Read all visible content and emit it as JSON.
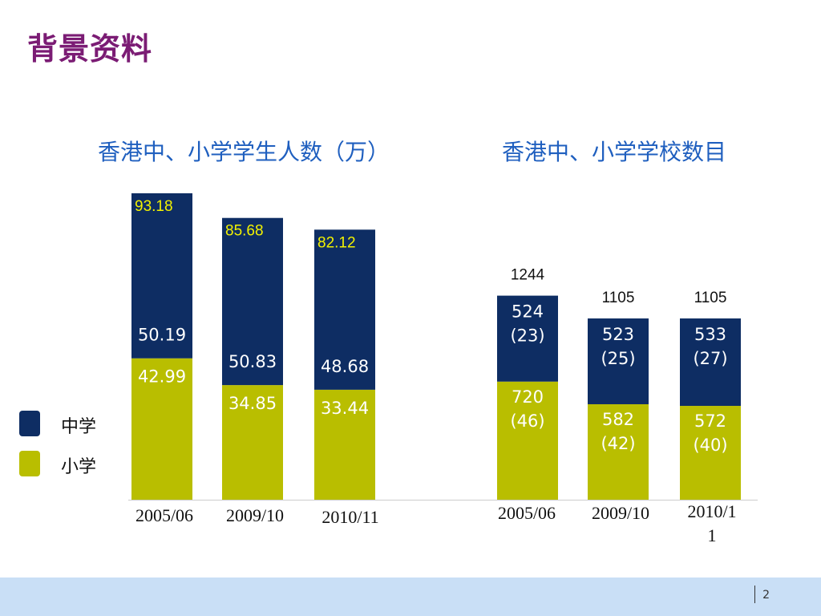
{
  "slide": {
    "title": "背景资料",
    "page_number": "2"
  },
  "legend": [
    {
      "label": "中学",
      "color": "#0e2d63"
    },
    {
      "label": "小学",
      "color": "#b9be00"
    }
  ],
  "colors": {
    "secondary": "#0e2d63",
    "primary": "#b9be00",
    "chart_title": "#1f5fbf",
    "slide_title": "#7b1c74",
    "footer": "#c9dff6"
  },
  "chart_data": [
    {
      "type": "bar",
      "stacked": true,
      "title": "香港中、小学学生人数（万）",
      "categories": [
        "2005/06",
        "2009/10",
        "2010/11"
      ],
      "series": [
        {
          "name": "小学",
          "values": [
            42.99,
            34.85,
            33.44
          ],
          "labels": [
            "42.99",
            "34.85",
            "33.44"
          ]
        },
        {
          "name": "中学",
          "values": [
            50.19,
            50.83,
            48.68
          ],
          "labels": [
            "50.19",
            "50.83",
            "48.68"
          ]
        }
      ],
      "totals": [
        "93.18",
        "85.68",
        "82.12"
      ]
    },
    {
      "type": "bar",
      "stacked": true,
      "title": "香港中、小学学校数目",
      "categories": [
        "2005/06",
        "2009/10",
        "2010/11"
      ],
      "series": [
        {
          "name": "小学",
          "values": [
            720,
            582,
            572
          ],
          "labels": [
            [
              "720",
              "(46)"
            ],
            [
              "582",
              "(42)"
            ],
            [
              "572",
              "(40)"
            ]
          ]
        },
        {
          "name": "中学",
          "values": [
            524,
            523,
            533
          ],
          "labels": [
            [
              "524",
              "(23)"
            ],
            [
              "523",
              "(25)"
            ],
            [
              "533",
              "(27)"
            ]
          ]
        }
      ],
      "totals": [
        "1244",
        "1105",
        "1105"
      ]
    }
  ]
}
